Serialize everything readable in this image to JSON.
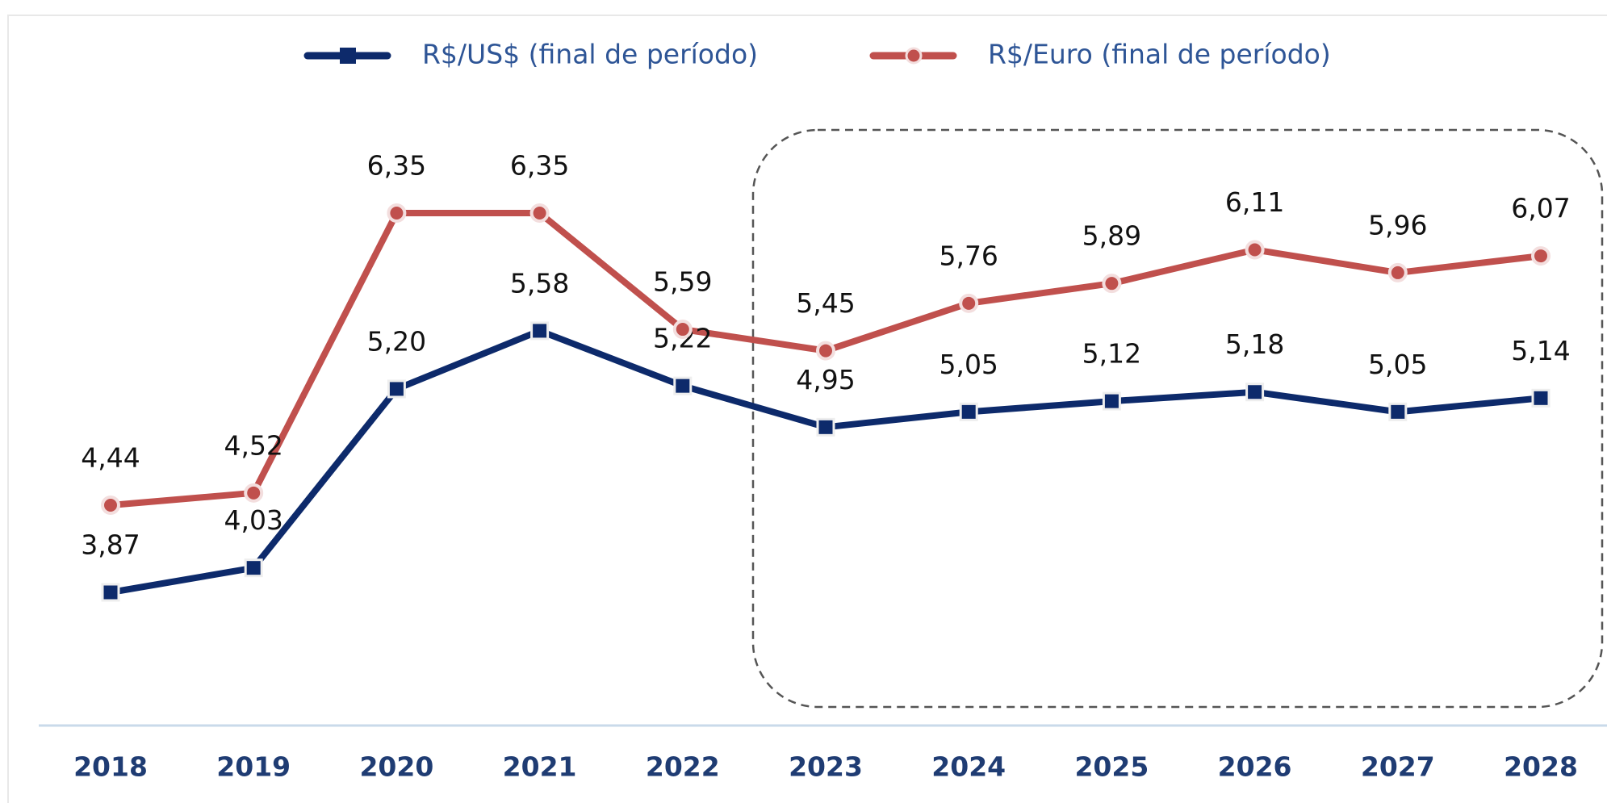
{
  "chart_data": {
    "type": "line",
    "categories": [
      "2018",
      "2019",
      "2020",
      "2021",
      "2022",
      "2023",
      "2024",
      "2025",
      "2026",
      "2027",
      "2028"
    ],
    "series": [
      {
        "name": "R$/US$ (final de período)",
        "color": "#0d2a6b",
        "marker": "square",
        "values": [
          3.87,
          4.03,
          5.2,
          5.58,
          5.22,
          4.95,
          5.05,
          5.12,
          5.18,
          5.05,
          5.14
        ],
        "value_labels": [
          "3,87",
          "4,03",
          "5,20",
          "5,58",
          "5,22",
          "4,95",
          "5,05",
          "5,12",
          "5,18",
          "5,05",
          "5,14"
        ]
      },
      {
        "name": "R$/Euro (final de período)",
        "color": "#c0504d",
        "marker": "circle",
        "values": [
          4.44,
          4.52,
          6.35,
          6.35,
          5.59,
          5.45,
          5.76,
          5.89,
          6.11,
          5.96,
          6.07
        ],
        "value_labels": [
          "4,44",
          "4,52",
          "6,35",
          "6,35",
          "5,59",
          "5,45",
          "5,76",
          "5,89",
          "6,11",
          "5,96",
          "6,07"
        ]
      }
    ],
    "legend": "top"
  }
}
